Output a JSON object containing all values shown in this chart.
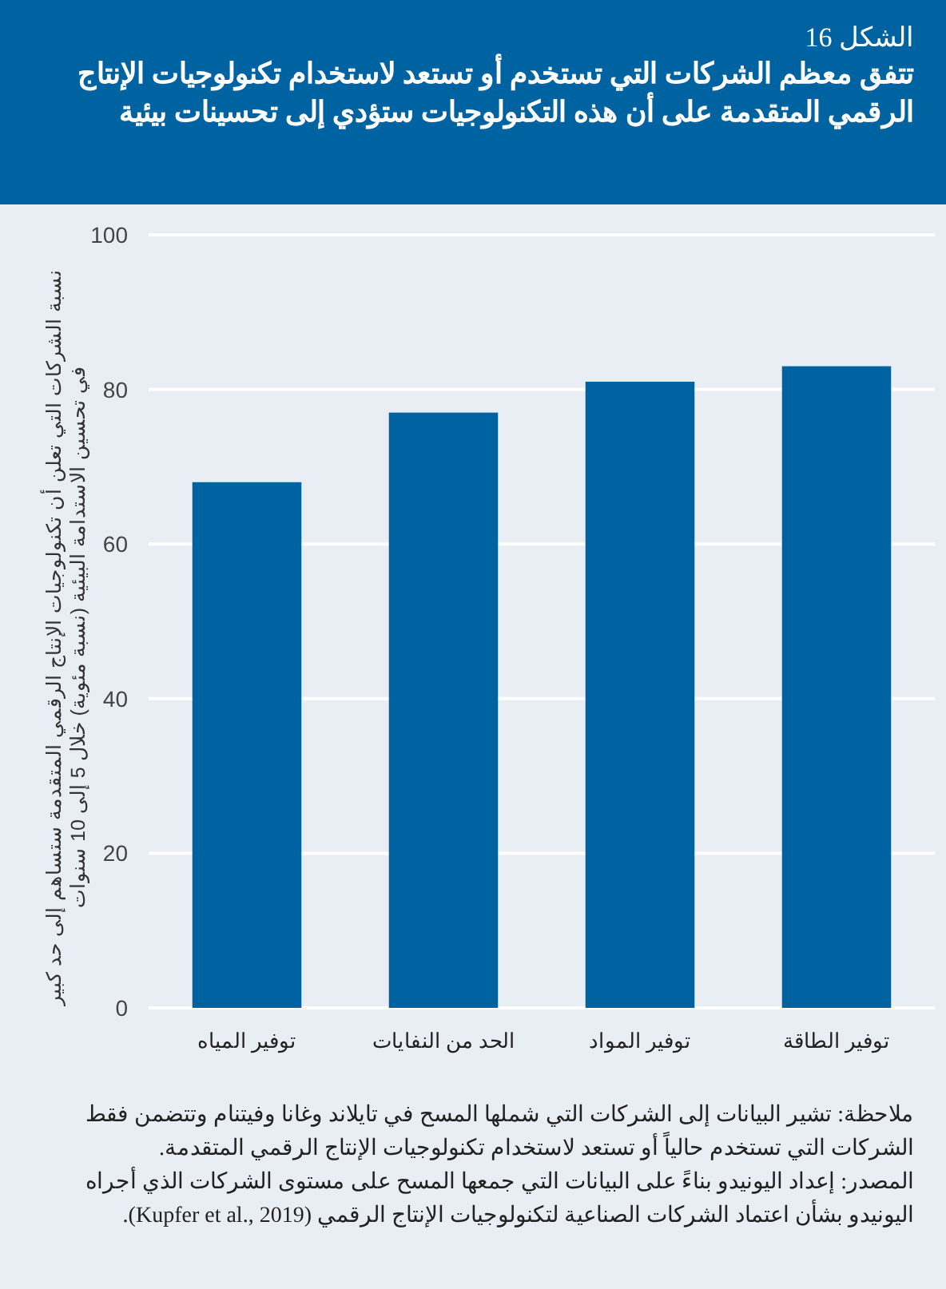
{
  "chart_data": {
    "type": "bar",
    "title": "الشكل 16",
    "subtitle": "تتفق معظم الشركات التي تستخدم أو تستعد لاستخدام تكنولوجيات الإنتاج الرقمي المتقدمة على أن هذه التكنولوجيات ستؤدي إلى تحسينات بيئية",
    "ylabel": "نسبة الشركات التي تعلن أن تكنولوجيات الإنتاج الرقمي المتقدمة ستساهم إلى حد كبير في تحسين الاستدامة البيئية (نسبة مئوية) خلال 5 إلى 10 سنوات",
    "categories": [
      "توفير المياه",
      "الحد من النفايات",
      "توفير المواد",
      "توفير الطاقة"
    ],
    "values": [
      68,
      77,
      81,
      83
    ],
    "color": "#0063a1",
    "ylim": [
      0,
      100
    ],
    "yticks": [
      0,
      20,
      40,
      60,
      80,
      100
    ],
    "grid": "y",
    "annotations": [
      "ملاحظة: تشير البيانات إلى الشركات التي شملها المسح في تايلاند وغانا وفيتنام وتتضمن فقط الشركات التي تستخدم حالياً أو تستعد لاستخدام تكنولوجيات الإنتاج الرقمي المتقدمة.",
      "المصدر: إعداد اليونيدو بناءً على البيانات التي جمعها المسح على مستوى الشركات الذي أجراه اليونيدو بشأن اعتماد الشركات الصناعية لتكنولوجيات الإنتاج الرقمي (Kupfer et al., 2019)."
    ]
  }
}
